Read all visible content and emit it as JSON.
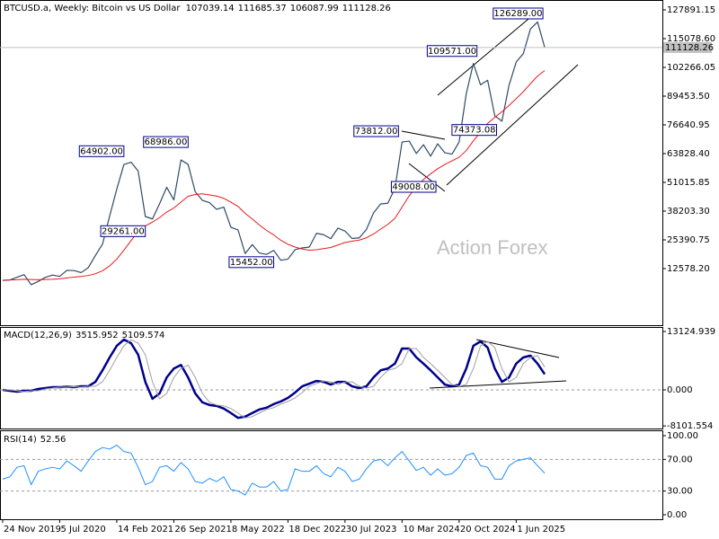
{
  "chart_data": [
    {
      "type": "line",
      "title": "BTCUSD.a, Weekly:  Bitcoin vs US Dollar",
      "open": 107039.14,
      "high": 111685.37,
      "low": 106087.99,
      "watermark": "Action Forex",
      "price_line": true,
      "x": [
        0,
        4,
        8,
        12,
        16,
        20,
        24,
        28,
        32,
        36,
        40,
        44,
        48,
        52,
        56,
        60,
        64,
        68,
        72,
        76,
        80,
        84,
        88,
        92,
        96,
        100,
        104,
        108,
        112,
        116,
        120,
        124,
        128,
        132,
        136,
        140,
        144,
        148,
        152,
        156,
        160,
        164,
        168,
        172,
        176,
        180,
        184,
        188,
        192,
        196,
        200,
        204,
        208,
        212,
        216,
        220,
        224,
        228,
        232,
        236,
        240,
        244,
        248,
        252,
        256,
        260,
        264,
        268,
        272,
        276,
        280,
        284,
        288,
        292,
        296,
        300,
        304
      ],
      "xlim": [
        -1.5,
        370
      ],
      "ylim": [
        -12647,
        132295
      ],
      "yticks": [
        127891.15,
        {
          "value": 115078.6,
          "label": "115078.60"
        },
        102266.05,
        {
          "value": 89453.5,
          "label": "89453.50"
        },
        76640.95,
        {
          "value": 63828.4,
          "label": "63828.40"
        },
        51015.85,
        {
          "value": 38203.3,
          "label": "38203.30"
        },
        25390.75,
        {
          "value": 12578.2,
          "label": "12578.20"
        }
      ],
      "series": [
        {
          "color": "#2f4a66",
          "width": 1.2,
          "values": [
            7300,
            7500,
            8700,
            9900,
            5400,
            6900,
            8700,
            9700,
            9100,
            11800,
            11700,
            10800,
            13000,
            18400,
            23500,
            36000,
            48000,
            59000,
            60000,
            56000,
            35800,
            34700,
            41500,
            48800,
            43200,
            61000,
            59000,
            46800,
            43000,
            42000,
            39000,
            40000,
            31000,
            29800,
            19300,
            23300,
            19500,
            18900,
            20700,
            16300,
            16800,
            21000,
            21800,
            22200,
            28300,
            27700,
            25900,
            30600,
            29300,
            26000,
            26300,
            30000,
            37400,
            41400,
            41700,
            48300,
            69000,
            69400,
            63900,
            67800,
            62700,
            68200,
            64200,
            63600,
            69000,
            90500,
            104000,
            94500,
            96500,
            80700,
            78300,
            94300,
            104600,
            108400,
            119400,
            122500,
            111128.26
          ]
        },
        {
          "color": "#e8191c",
          "width": 1,
          "values": [
            7400,
            7500,
            7600,
            7800,
            7700,
            7600,
            7700,
            7800,
            8000,
            8400,
            8800,
            9100,
            9500,
            10300,
            11600,
            13800,
            16800,
            20800,
            25000,
            29300,
            31600,
            33300,
            35300,
            37800,
            39600,
            42200,
            44800,
            45600,
            45900,
            45400,
            44900,
            43900,
            42200,
            40300,
            37200,
            34700,
            32000,
            29600,
            27600,
            25200,
            23400,
            22200,
            21300,
            20800,
            21000,
            21500,
            22000,
            23100,
            24200,
            24800,
            25300,
            26300,
            28000,
            30200,
            32300,
            35000,
            40000,
            45000,
            49000,
            52300,
            54800,
            57100,
            59000,
            60600,
            62200,
            65200,
            69500,
            73400,
            77300,
            80000,
            82500,
            85300,
            88300,
            91400,
            95000,
            98400,
            100800
          ]
        }
      ],
      "annotations": [
        {
          "x": 303,
          "value": 126289,
          "label": "126289.00"
        },
        {
          "x": 266,
          "value": 109571,
          "label": "109571.00"
        },
        {
          "x": 222,
          "value": 73812,
          "label": "73812.00"
        },
        {
          "x": 68,
          "value": 64902,
          "label": "64902.00"
        },
        {
          "x": 104,
          "value": 68986,
          "label": "68986.00"
        },
        {
          "x": 277,
          "value": 74373.08,
          "label": "74373.08"
        },
        {
          "x": 243,
          "value": 49008,
          "label": "49008.00"
        },
        {
          "x": 80,
          "value": 29261,
          "label": "29261.00"
        },
        {
          "x": 152,
          "value": 15452,
          "label": "15452.00"
        }
      ]
    },
    {
      "type": "line",
      "title": "MACD(12,26,9)",
      "grid": true,
      "ylim": [
        -8683,
        14135
      ],
      "yticks": [
        13124.939,
        {
          "value": 0,
          "label": "0.000"
        },
        -8101.554
      ],
      "series": [
        {
          "color": "#00008b",
          "width": 2.5,
          "values": [
            0,
            -200,
            -400,
            -200,
            -200,
            200,
            400,
            600,
            600,
            700,
            600,
            800,
            800,
            1800,
            4400,
            7300,
            9900,
            11300,
            10500,
            7900,
            1800,
            -2000,
            -800,
            2800,
            4800,
            5600,
            2800,
            -800,
            -2800,
            -3400,
            -3600,
            -4200,
            -5200,
            -6300,
            -6000,
            -5200,
            -4400,
            -4000,
            -3200,
            -2600,
            -1800,
            -600,
            800,
            1400,
            2000,
            1800,
            1200,
            1800,
            1800,
            800,
            400,
            800,
            2800,
            4400,
            4800,
            5900,
            9300,
            9300,
            7300,
            5900,
            4400,
            2800,
            1200,
            800,
            1200,
            4800,
            9900,
            10900,
            9500,
            4800,
            1800,
            2800,
            5900,
            7300,
            7700,
            5900,
            3515.952
          ]
        },
        {
          "color": "#a0a0a0",
          "width": 1,
          "values": [
            0,
            0,
            -200,
            -400,
            -200,
            -200,
            200,
            400,
            600,
            600,
            700,
            600,
            800,
            800,
            1800,
            4400,
            7300,
            9900,
            11300,
            10500,
            7900,
            1800,
            -2000,
            -800,
            2800,
            4800,
            5600,
            2800,
            -800,
            -2800,
            -3400,
            -3600,
            -4200,
            -5200,
            -6300,
            -6000,
            -5200,
            -4400,
            -4000,
            -3200,
            -2600,
            -1800,
            -600,
            800,
            1400,
            2000,
            1800,
            1200,
            1800,
            1800,
            800,
            400,
            800,
            2800,
            4400,
            4800,
            5900,
            9300,
            9300,
            7300,
            5900,
            4400,
            2800,
            1200,
            800,
            1200,
            4800,
            9900,
            10900,
            9500,
            4800,
            1800,
            2800,
            5900,
            7300,
            7700,
            5109.574
          ]
        }
      ]
    },
    {
      "type": "line",
      "title": "RSI(14)",
      "grid": true,
      "ylim": [
        -5.7,
        106.8
      ],
      "yticks": [
        {
          "value": 100,
          "label": "100.00"
        },
        {
          "value": 70,
          "label": "70.00"
        },
        {
          "value": 30,
          "label": "30.00"
        },
        {
          "value": 0,
          "label": "0.00"
        }
      ],
      "xticks": [
        {
          "value": 0,
          "label": "24 Nov 2019"
        },
        {
          "value": 32,
          "label": "5 Jul 2020"
        },
        {
          "value": 64,
          "label": "14 Feb 2021"
        },
        {
          "value": 96,
          "label": "26 Sep 2021"
        },
        {
          "value": 128,
          "label": "8 May 2022"
        },
        {
          "value": 160,
          "label": "18 Dec 2022"
        },
        {
          "value": 192,
          "label": "30 Jul 2023"
        },
        {
          "value": 224,
          "label": "10 Mar 2024"
        },
        {
          "value": 256,
          "label": "20 Oct 2024"
        },
        {
          "value": 288,
          "label": "1 Jun 2025"
        }
      ],
      "series": [
        {
          "color": "#1e90ff",
          "width": 1,
          "values": [
            45,
            48,
            60,
            62,
            38,
            55,
            58,
            60,
            58,
            68,
            62,
            55,
            68,
            80,
            85,
            83,
            88,
            80,
            78,
            60,
            38,
            42,
            60,
            62,
            55,
            66,
            58,
            42,
            40,
            46,
            42,
            48,
            32,
            30,
            25,
            40,
            35,
            35,
            42,
            30,
            32,
            58,
            55,
            55,
            62,
            52,
            48,
            60,
            55,
            42,
            45,
            58,
            68,
            70,
            62,
            72,
            80,
            68,
            56,
            60,
            50,
            58,
            50,
            52,
            60,
            75,
            78,
            62,
            60,
            45,
            45,
            62,
            68,
            70,
            72,
            62,
            52.56
          ]
        }
      ]
    }
  ]
}
